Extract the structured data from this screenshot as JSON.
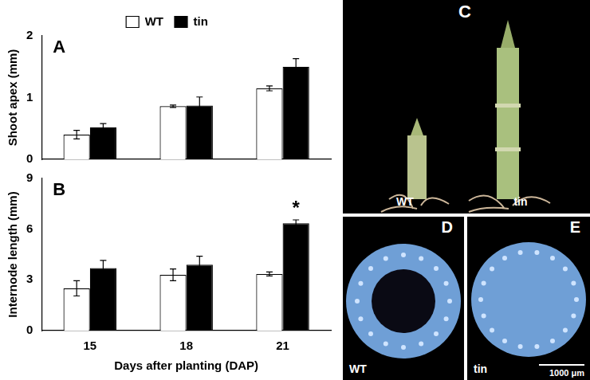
{
  "chart_data": [
    {
      "panel_label": "A",
      "type": "bar",
      "y_label": "Shoot apex (mm)",
      "categories": [
        "15",
        "18",
        "21"
      ],
      "series": [
        {
          "name": "WT",
          "color": "#ffffff",
          "values": [
            0.4,
            0.86,
            1.15
          ],
          "errors": [
            0.07,
            0.02,
            0.04
          ]
        },
        {
          "name": "tin",
          "color": "#000000",
          "values": [
            0.52,
            0.87,
            1.5
          ],
          "errors": [
            0.06,
            0.14,
            0.13
          ]
        }
      ],
      "ylim": [
        0,
        2
      ],
      "yticks": [
        0,
        1,
        2
      ],
      "grid": false,
      "legend": "top",
      "tick_labels": "y"
    },
    {
      "panel_label": "B",
      "type": "bar",
      "y_label": "Internode length (mm)",
      "x_label": "Days after planting (DAP)",
      "categories": [
        "15",
        "18",
        "21"
      ],
      "series": [
        {
          "name": "WT",
          "color": "#ffffff",
          "values": [
            2.5,
            3.3,
            3.35
          ],
          "errors": [
            0.45,
            0.35,
            0.12
          ]
        },
        {
          "name": "tin",
          "color": "#000000",
          "values": [
            3.7,
            3.9,
            6.35
          ],
          "errors": [
            0.45,
            0.5,
            0.2
          ]
        }
      ],
      "ylim": [
        0,
        9
      ],
      "yticks": [
        0,
        3,
        6,
        9
      ],
      "grid": false,
      "annotations": [
        {
          "text": "*",
          "category": "21",
          "series": "tin"
        }
      ]
    }
  ],
  "images": [
    {
      "panel_label": "C",
      "labels": [
        "WT",
        "tin"
      ]
    },
    {
      "panel_label": "D",
      "labels": [
        "WT"
      ]
    },
    {
      "panel_label": "E",
      "labels": [
        "tin"
      ],
      "scale_bar": "1000 μm"
    }
  ]
}
